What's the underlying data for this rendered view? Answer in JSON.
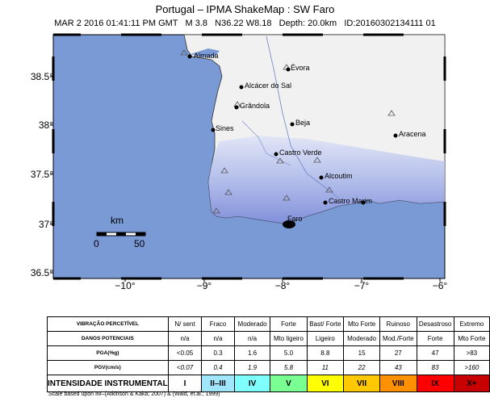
{
  "title": "Portugal – IPMA ShakeMap : SW Faro",
  "subtitle": "MAR 2 2016 01:41:11 PM GMT   M 3.8   N36.22 W8.18   Depth: 20.0km   ID:20160302134111 01",
  "map": {
    "y_ticks": [
      "38.5°",
      "38°",
      "37.5°",
      "37°",
      "36.5°"
    ],
    "x_ticks": [
      "−10°",
      "−9°",
      "−8°",
      "−7°",
      "−6°"
    ],
    "scale_bar": {
      "unit": "km",
      "min": "0",
      "max": "50"
    },
    "cities": [
      {
        "name": "Almada"
      },
      {
        "name": "Évora"
      },
      {
        "name": "Alcácer do Sal"
      },
      {
        "name": "Grândola"
      },
      {
        "name": "Beja"
      },
      {
        "name": "Sines"
      },
      {
        "name": "Aracena"
      },
      {
        "name": "Castro Verde"
      },
      {
        "name": "Alcoutim"
      },
      {
        "name": "Castro Marim"
      },
      {
        "name": "Faro"
      }
    ],
    "colors": {
      "sea": "#7a9ad6",
      "land": "#f2f2f2",
      "shaking": "#7f8fde",
      "epicenter": "#000000"
    }
  },
  "legend": {
    "rows": [
      {
        "header": "VIBRAÇÃO PERCETÍVEL",
        "cells": [
          "N/ sent",
          "Fraco",
          "Moderado",
          "Forte",
          "Bast/ Forte",
          "Mto Forte",
          "Ruinoso",
          "Desastroso",
          "Extremo"
        ]
      },
      {
        "header": "DANOS POTENCIAIS",
        "cells": [
          "n/a",
          "n/a",
          "n/a",
          "Mto ligeiro",
          "Ligeiro",
          "Moderado",
          "Mod./Forte",
          "Forte",
          "Mto Forte"
        ]
      },
      {
        "header": "PGA(%g)",
        "cells": [
          "<0.05",
          "0.3",
          "1.6",
          "5.0",
          "8.8",
          "15",
          "27",
          "47",
          ">83"
        ]
      },
      {
        "header": "PGV(cm/s)",
        "cells": [
          "<0.07",
          "0.4",
          "1.9",
          "5.8",
          "11",
          "22",
          "43",
          "83",
          ">160"
        ]
      },
      {
        "header": "INTENSIDADE INSTRUMENTAL",
        "cells": [
          "I",
          "II–III",
          "IV",
          "V",
          "VI",
          "VII",
          "VIII",
          "IX",
          "X+"
        ]
      }
    ],
    "intensity_colors": [
      "#ffffff",
      "#bfccff",
      "#a0e6ff",
      "#80ffff",
      "#7aff93",
      "#ffff00",
      "#ffc800",
      "#ff9100",
      "#ff0000",
      "#c80000"
    ],
    "footnote": "Scale based upon IM–(Atkinson & Kaka; 2007) & (Wald, et.al.; 1999)"
  }
}
